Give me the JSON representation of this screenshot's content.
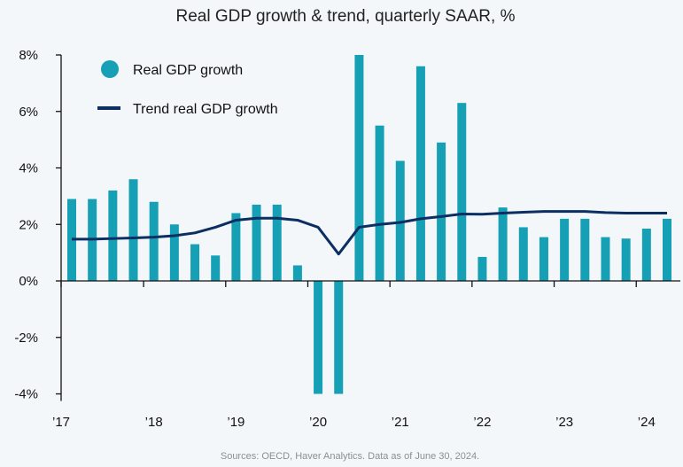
{
  "chart_data": {
    "type": "bar",
    "title": "Real GDP growth & trend, quarterly SAAR, %",
    "source": "Sources: OECD, Haver Analytics. Data as of June 30, 2024.",
    "x": [
      "2017Q1",
      "2017Q2",
      "2017Q3",
      "2017Q4",
      "2018Q1",
      "2018Q2",
      "2018Q3",
      "2018Q4",
      "2019Q1",
      "2019Q2",
      "2019Q3",
      "2019Q4",
      "2020Q1",
      "2020Q2",
      "2020Q3",
      "2020Q4",
      "2021Q1",
      "2021Q2",
      "2021Q3",
      "2021Q4",
      "2022Q1",
      "2022Q2",
      "2022Q3",
      "2022Q4",
      "2023Q1",
      "2023Q2",
      "2023Q3",
      "2023Q4",
      "2024Q1",
      "2024Q2"
    ],
    "series": [
      {
        "name": "Real GDP growth",
        "type": "bar",
        "color": "#16a0b5",
        "values": [
          2.9,
          2.9,
          3.2,
          3.6,
          2.8,
          2.0,
          1.3,
          0.9,
          2.4,
          2.7,
          2.7,
          0.55,
          -4.0,
          -4.0,
          8.0,
          5.5,
          4.25,
          7.6,
          4.9,
          6.3,
          0.85,
          2.6,
          1.9,
          1.55,
          2.2,
          2.2,
          1.55,
          1.5,
          1.85,
          2.2
        ]
      },
      {
        "name": "Trend real GDP growth",
        "type": "line",
        "color": "#0b2e63",
        "values": [
          1.48,
          1.48,
          1.5,
          1.52,
          1.55,
          1.6,
          1.7,
          1.9,
          2.15,
          2.22,
          2.22,
          2.15,
          1.9,
          0.95,
          1.9,
          2.0,
          2.07,
          2.2,
          2.28,
          2.37,
          2.36,
          2.4,
          2.43,
          2.46,
          2.46,
          2.46,
          2.42,
          2.4,
          2.4,
          2.4
        ]
      }
    ],
    "x_tick_labels": [
      "’17",
      "’18",
      "’19",
      "’20",
      "’21",
      "’22",
      "’23",
      "’24"
    ],
    "x_tick_index": [
      0,
      4,
      8,
      12,
      16,
      20,
      24,
      28
    ],
    "y_ticks": [
      8,
      6,
      4,
      2,
      0,
      -2,
      -4
    ],
    "y_tick_labels": [
      "8%",
      "6%",
      "4%",
      "2%",
      "0%",
      "-2%",
      "-4%"
    ],
    "ylim": [
      -4.25,
      8
    ],
    "xlabel": "",
    "ylabel": "",
    "grid": false,
    "legend_position": "top-left"
  }
}
